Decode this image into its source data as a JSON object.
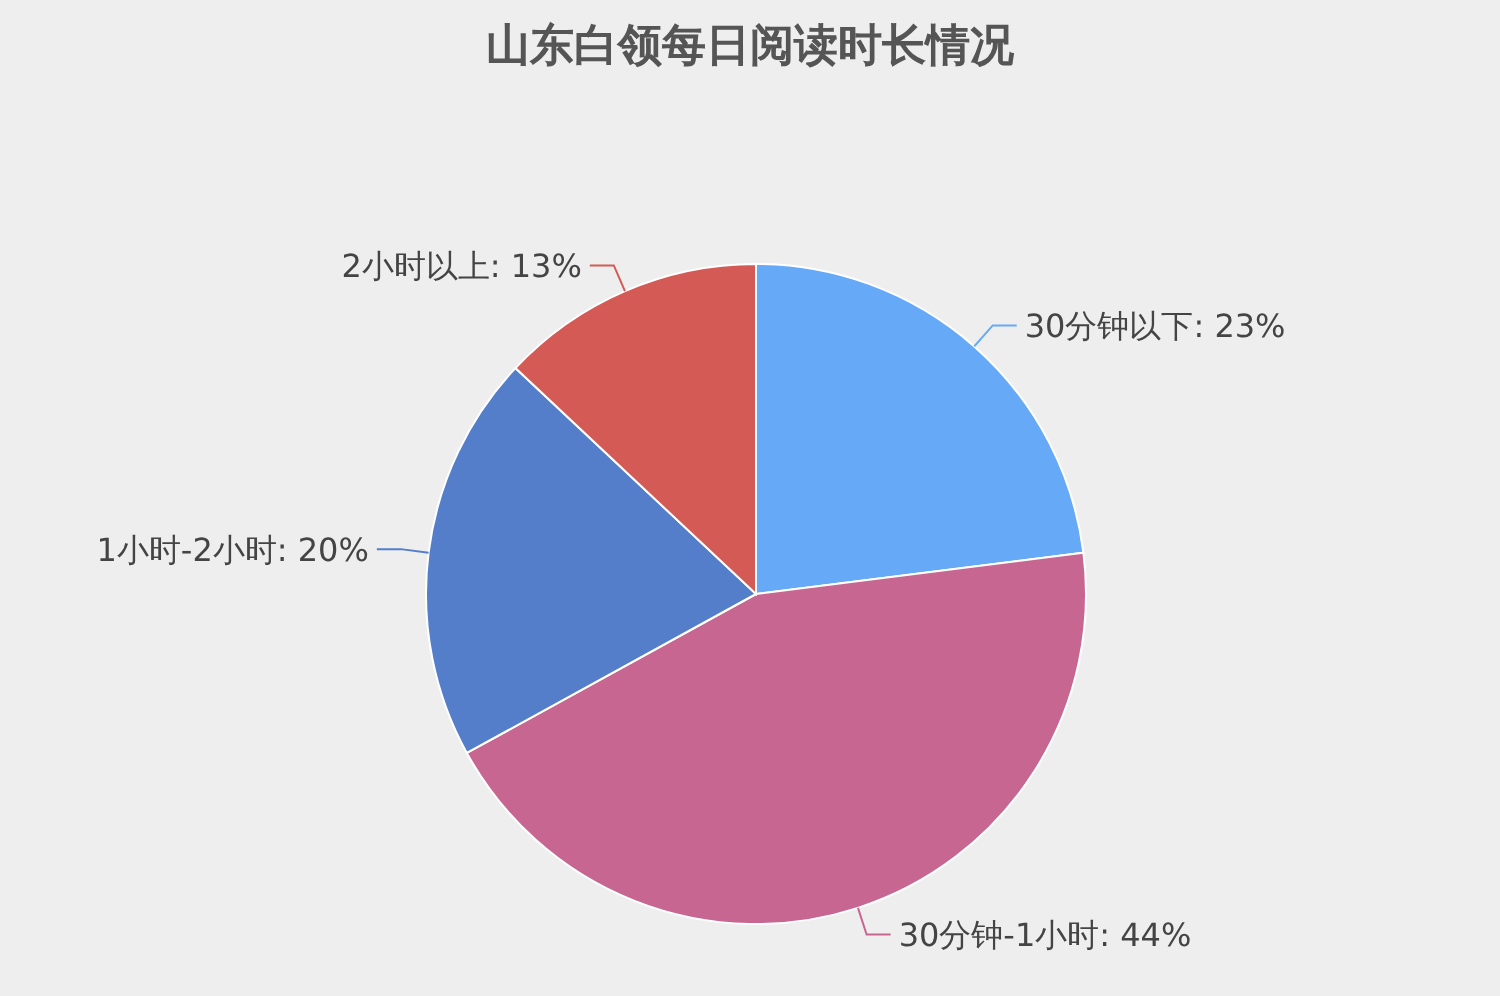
{
  "chart_data": {
    "type": "pie",
    "title": "山东白领每日阅读时长情况",
    "categories": [
      "30分钟以下",
      "30分钟-1小时",
      "1小时-2小时",
      "2小时以上"
    ],
    "values": [
      23,
      44,
      20,
      13
    ],
    "value_labels": [
      "23%",
      "44%",
      "20%",
      "13%"
    ],
    "colors": [
      "#66a9f6",
      "#c86692",
      "#547ec9",
      "#d45a55"
    ]
  }
}
